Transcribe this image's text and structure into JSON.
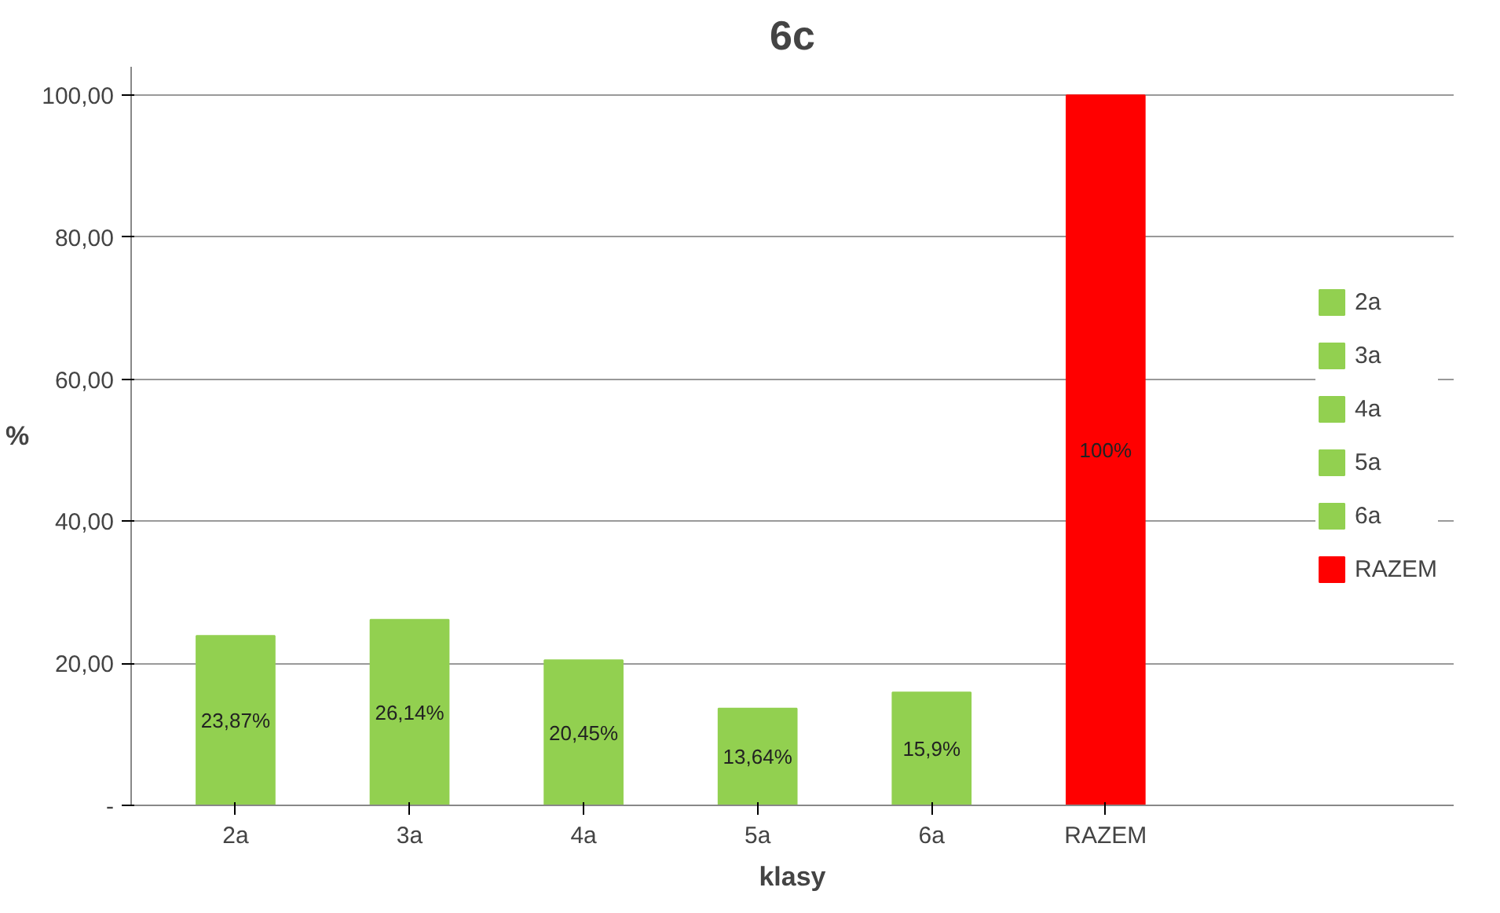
{
  "chart_data": {
    "type": "bar",
    "title": "6c",
    "xlabel": "klasy",
    "ylabel": "%",
    "categories": [
      "2a",
      "3a",
      "4a",
      "5a",
      "6a",
      "RAZEM"
    ],
    "stacked": true,
    "series": [
      {
        "name": "2a",
        "color": "#92d050",
        "values": [
          23.87,
          null,
          null,
          null,
          null,
          null
        ],
        "value_labels": [
          "23,87%",
          null,
          null,
          null,
          null,
          null
        ]
      },
      {
        "name": "3a",
        "color": "#92d050",
        "values": [
          null,
          26.14,
          null,
          null,
          null,
          null
        ],
        "value_labels": [
          null,
          "26,14%",
          null,
          null,
          null,
          null
        ]
      },
      {
        "name": "4a",
        "color": "#92d050",
        "values": [
          null,
          null,
          20.45,
          null,
          null,
          null
        ],
        "value_labels": [
          null,
          null,
          "20,45%",
          null,
          null,
          null
        ]
      },
      {
        "name": "5a",
        "color": "#92d050",
        "values": [
          null,
          null,
          null,
          13.64,
          null,
          null
        ],
        "value_labels": [
          null,
          null,
          null,
          "13,64%",
          null,
          null
        ]
      },
      {
        "name": "6a",
        "color": "#92d050",
        "values": [
          null,
          null,
          null,
          null,
          15.9,
          null
        ],
        "value_labels": [
          null,
          null,
          null,
          null,
          "15,9%",
          null
        ]
      },
      {
        "name": "RAZEM",
        "color": "#ff0000",
        "values": [
          null,
          null,
          null,
          null,
          null,
          100
        ],
        "value_labels": [
          null,
          null,
          null,
          null,
          null,
          "100%"
        ]
      }
    ],
    "ylim": [
      0,
      100
    ],
    "yticks": [
      {
        "value": 0,
        "label": "-"
      },
      {
        "value": 20,
        "label": "20,00"
      },
      {
        "value": 40,
        "label": "40,00"
      },
      {
        "value": 60,
        "label": "60,00"
      },
      {
        "value": 80,
        "label": "80,00"
      },
      {
        "value": 100,
        "label": "100,00"
      }
    ],
    "grid": "y",
    "legend": "right"
  }
}
